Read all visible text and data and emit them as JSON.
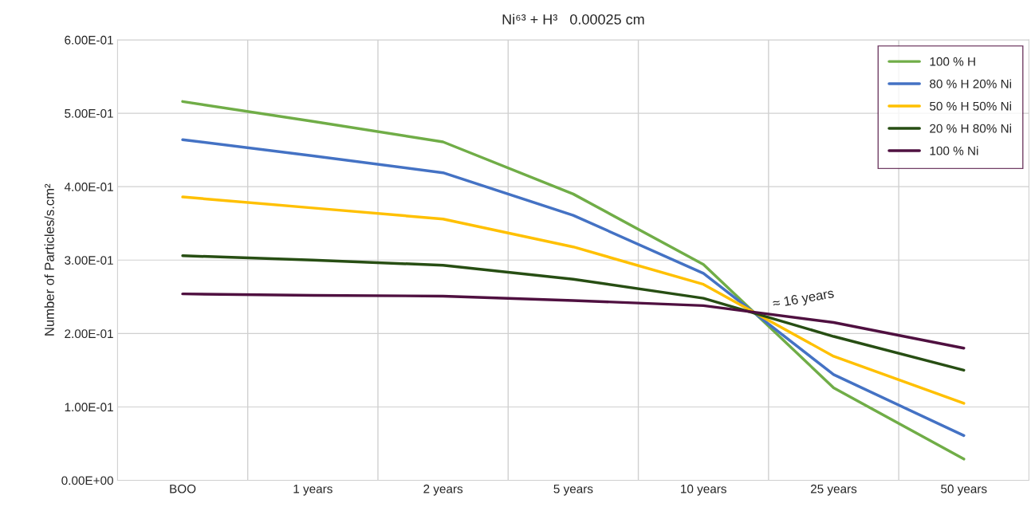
{
  "chart_data": {
    "type": "line",
    "title": "Ni⁶³ + H³   0.00025 cm",
    "ylabel": "Number of Particles/s.cm²",
    "categories": [
      "BOO",
      "1 years",
      "2 years",
      "5 years",
      "10 years",
      "25 years",
      "50 years"
    ],
    "series": [
      {
        "name": "100 % H",
        "color": "#70ad47",
        "values": [
          0.516,
          0.489,
          0.461,
          0.39,
          0.294,
          0.126,
          0.029
        ]
      },
      {
        "name": "80 % H 20% Ni",
        "color": "#4472c4",
        "values": [
          0.464,
          0.442,
          0.419,
          0.361,
          0.282,
          0.144,
          0.061
        ]
      },
      {
        "name": "50 % H 50% Ni",
        "color": "#ffc000",
        "values": [
          0.386,
          0.371,
          0.356,
          0.318,
          0.267,
          0.169,
          0.105
        ]
      },
      {
        "name": "20 % H 80% Ni",
        "color": "#274e13",
        "values": [
          0.306,
          0.3,
          0.293,
          0.274,
          0.248,
          0.196,
          0.15
        ]
      },
      {
        "name": "100 % Ni",
        "color": "#4f1040",
        "values": [
          0.254,
          0.252,
          0.251,
          0.245,
          0.238,
          0.215,
          0.18
        ]
      }
    ],
    "ylim": [
      0,
      0.6
    ],
    "yticks": [
      {
        "value": 0,
        "label": "0.00E+00"
      },
      {
        "value": 0.1,
        "label": "1.00E-01"
      },
      {
        "value": 0.2,
        "label": "2.00E-01"
      },
      {
        "value": 0.3,
        "label": "3.00E-01"
      },
      {
        "value": 0.4,
        "label": "4.00E-01"
      },
      {
        "value": 0.5,
        "label": "5.00E-01"
      },
      {
        "value": 0.6,
        "label": "6.00E-01"
      }
    ],
    "annotations": [
      "≈ 16 years"
    ],
    "grid": true,
    "legend": "top right",
    "marker": "none",
    "line_style": "solid"
  }
}
